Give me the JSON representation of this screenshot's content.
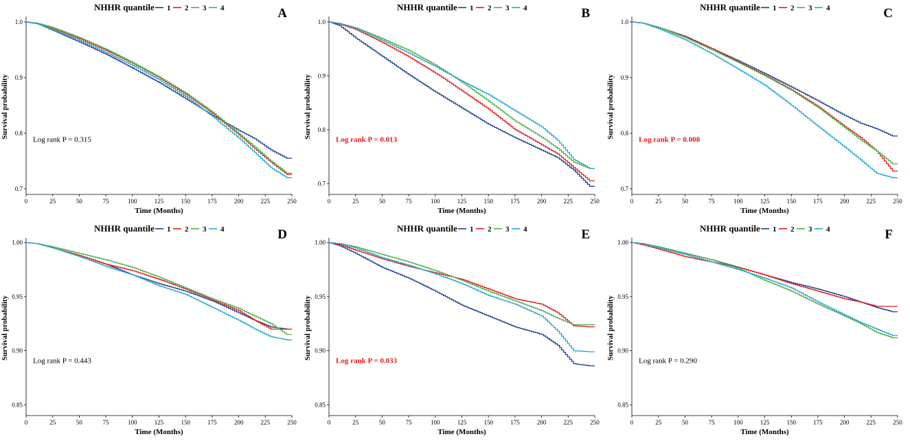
{
  "figure": {
    "legend_title": "NHHR quantile",
    "legend_labels": [
      "1",
      "2",
      "3",
      "4"
    ],
    "series_colors": [
      "#1f3f8f",
      "#e41a1c",
      "#4daf4a",
      "#2aa7c6"
    ],
    "sig_color": "#e41a1c",
    "text_color": "#000000"
  },
  "chart_data": [
    {
      "panel_label": "A",
      "type": "line",
      "step": true,
      "title": "",
      "xlabel": "Time (Months)",
      "ylabel": "Survival probability",
      "xlim": [
        0,
        250
      ],
      "ylim": [
        0.69,
        1.005
      ],
      "xticks": [
        0,
        25,
        50,
        75,
        100,
        125,
        150,
        175,
        200,
        225,
        250
      ],
      "yticks": [
        0.7,
        0.8,
        0.9,
        1.0
      ],
      "ytick_labels": [
        "0.7",
        "0.8",
        "0.9",
        "1.0"
      ],
      "annotation": "Log rank P = 0.315",
      "significant": false,
      "series": [
        {
          "name": "1",
          "x": [
            0,
            10,
            25,
            50,
            75,
            100,
            125,
            150,
            175,
            200,
            215,
            230,
            245,
            250
          ],
          "y": [
            1.0,
            0.997,
            0.985,
            0.964,
            0.942,
            0.917,
            0.891,
            0.862,
            0.832,
            0.805,
            0.79,
            0.77,
            0.755,
            0.755
          ]
        },
        {
          "name": "2",
          "x": [
            0,
            10,
            25,
            50,
            75,
            100,
            125,
            150,
            175,
            200,
            215,
            230,
            245,
            250
          ],
          "y": [
            1.0,
            0.997,
            0.988,
            0.97,
            0.949,
            0.926,
            0.9,
            0.87,
            0.836,
            0.797,
            0.772,
            0.748,
            0.726,
            0.726
          ]
        },
        {
          "name": "3",
          "x": [
            0,
            10,
            25,
            50,
            75,
            100,
            125,
            150,
            175,
            200,
            215,
            230,
            245,
            250
          ],
          "y": [
            1.0,
            0.998,
            0.99,
            0.972,
            0.951,
            0.927,
            0.901,
            0.872,
            0.838,
            0.799,
            0.775,
            0.75,
            0.728,
            0.728
          ]
        },
        {
          "name": "4",
          "x": [
            0,
            10,
            25,
            50,
            75,
            100,
            125,
            150,
            175,
            200,
            215,
            230,
            245,
            250
          ],
          "y": [
            1.0,
            0.997,
            0.986,
            0.967,
            0.945,
            0.922,
            0.896,
            0.866,
            0.83,
            0.791,
            0.765,
            0.738,
            0.72,
            0.72
          ]
        }
      ]
    },
    {
      "panel_label": "B",
      "type": "line",
      "step": true,
      "title": "",
      "xlabel": "Time (Months)",
      "ylabel": "Survival probability",
      "xlim": [
        0,
        250
      ],
      "ylim": [
        0.68,
        1.005
      ],
      "xticks": [
        0,
        25,
        50,
        75,
        100,
        125,
        150,
        175,
        200,
        225,
        250
      ],
      "yticks": [
        0.7,
        0.8,
        0.9,
        1.0
      ],
      "ytick_labels": [
        "0.7",
        "0.8",
        "0.9",
        "1.0"
      ],
      "annotation": "Log rank P = 0.013",
      "significant": true,
      "series": [
        {
          "name": "1",
          "x": [
            0,
            10,
            25,
            50,
            75,
            100,
            125,
            150,
            175,
            200,
            215,
            230,
            245,
            250
          ],
          "y": [
            1.0,
            0.993,
            0.97,
            0.936,
            0.902,
            0.87,
            0.84,
            0.81,
            0.785,
            0.762,
            0.748,
            0.725,
            0.695,
            0.695
          ]
        },
        {
          "name": "2",
          "x": [
            0,
            10,
            25,
            50,
            75,
            100,
            125,
            150,
            175,
            200,
            215,
            230,
            245,
            250
          ],
          "y": [
            1.0,
            0.996,
            0.986,
            0.962,
            0.935,
            0.905,
            0.872,
            0.838,
            0.8,
            0.772,
            0.755,
            0.73,
            0.705,
            0.705
          ]
        },
        {
          "name": "3",
          "x": [
            0,
            10,
            25,
            50,
            75,
            100,
            125,
            150,
            175,
            200,
            215,
            230,
            245,
            250
          ],
          "y": [
            1.0,
            0.997,
            0.989,
            0.969,
            0.947,
            0.92,
            0.888,
            0.853,
            0.816,
            0.786,
            0.765,
            0.74,
            0.728,
            0.728
          ]
        },
        {
          "name": "4",
          "x": [
            0,
            10,
            25,
            50,
            75,
            100,
            125,
            150,
            175,
            200,
            215,
            230,
            245,
            250
          ],
          "y": [
            1.0,
            0.997,
            0.988,
            0.966,
            0.942,
            0.917,
            0.89,
            0.865,
            0.835,
            0.805,
            0.78,
            0.745,
            0.728,
            0.728
          ]
        }
      ]
    },
    {
      "panel_label": "C",
      "type": "line",
      "step": true,
      "title": "",
      "xlabel": "Time (Months)",
      "ylabel": "Survival probability",
      "xlim": [
        0,
        250
      ],
      "ylim": [
        0.69,
        1.005
      ],
      "xticks": [
        0,
        25,
        50,
        75,
        100,
        125,
        150,
        175,
        200,
        225,
        250
      ],
      "yticks": [
        0.7,
        0.8,
        0.9,
        1.0
      ],
      "ytick_labels": [
        "0.7",
        "0.8",
        "0.9",
        "1.0"
      ],
      "annotation": "Log rank P = 0.008",
      "significant": true,
      "series": [
        {
          "name": "1",
          "x": [
            0,
            10,
            25,
            50,
            75,
            100,
            125,
            150,
            175,
            200,
            215,
            230,
            245,
            250
          ],
          "y": [
            1.0,
            0.998,
            0.99,
            0.974,
            0.952,
            0.93,
            0.907,
            0.883,
            0.858,
            0.832,
            0.818,
            0.808,
            0.795,
            0.795
          ]
        },
        {
          "name": "2",
          "x": [
            0,
            10,
            25,
            50,
            75,
            100,
            125,
            150,
            175,
            200,
            215,
            230,
            245,
            250
          ],
          "y": [
            1.0,
            0.998,
            0.99,
            0.973,
            0.952,
            0.928,
            0.904,
            0.878,
            0.848,
            0.812,
            0.792,
            0.768,
            0.732,
            0.732
          ]
        },
        {
          "name": "3",
          "x": [
            0,
            10,
            25,
            50,
            75,
            100,
            125,
            150,
            175,
            200,
            215,
            230,
            245,
            250
          ],
          "y": [
            1.0,
            0.998,
            0.99,
            0.972,
            0.95,
            0.927,
            0.903,
            0.877,
            0.846,
            0.81,
            0.788,
            0.768,
            0.745,
            0.745
          ]
        },
        {
          "name": "4",
          "x": [
            0,
            10,
            25,
            50,
            75,
            100,
            125,
            150,
            175,
            200,
            215,
            230,
            245,
            250
          ],
          "y": [
            1.0,
            0.998,
            0.988,
            0.968,
            0.943,
            0.915,
            0.886,
            0.85,
            0.812,
            0.775,
            0.752,
            0.728,
            0.72,
            0.72
          ]
        }
      ]
    },
    {
      "panel_label": "D",
      "type": "line",
      "step": true,
      "title": "",
      "xlabel": "Time (Months)",
      "ylabel": "Survival probability",
      "xlim": [
        0,
        250
      ],
      "ylim": [
        0.84,
        1.002
      ],
      "xticks": [
        0,
        25,
        50,
        75,
        100,
        125,
        150,
        175,
        200,
        225,
        250
      ],
      "yticks": [
        0.85,
        0.9,
        0.95,
        1.0
      ],
      "ytick_labels": [
        "0.85",
        "0.90",
        "0.95",
        "1.00"
      ],
      "annotation": "Log rank P = 0.443",
      "significant": false,
      "series": [
        {
          "name": "1",
          "x": [
            0,
            10,
            25,
            50,
            75,
            100,
            125,
            150,
            175,
            200,
            215,
            230,
            245,
            250
          ],
          "y": [
            1.0,
            0.999,
            0.995,
            0.988,
            0.98,
            0.97,
            0.962,
            0.955,
            0.946,
            0.935,
            0.928,
            0.922,
            0.92,
            0.92
          ]
        },
        {
          "name": "2",
          "x": [
            0,
            10,
            25,
            50,
            75,
            100,
            125,
            150,
            175,
            200,
            215,
            230,
            245,
            250
          ],
          "y": [
            1.0,
            0.999,
            0.995,
            0.988,
            0.98,
            0.974,
            0.966,
            0.957,
            0.947,
            0.937,
            0.928,
            0.92,
            0.92,
            0.92
          ]
        },
        {
          "name": "3",
          "x": [
            0,
            10,
            25,
            50,
            75,
            100,
            125,
            150,
            175,
            200,
            215,
            230,
            245,
            250
          ],
          "y": [
            1.0,
            0.999,
            0.996,
            0.99,
            0.984,
            0.977,
            0.968,
            0.958,
            0.948,
            0.939,
            0.932,
            0.925,
            0.915,
            0.915
          ]
        },
        {
          "name": "4",
          "x": [
            0,
            10,
            25,
            50,
            75,
            100,
            125,
            150,
            175,
            200,
            215,
            230,
            245,
            250
          ],
          "y": [
            1.0,
            0.999,
            0.995,
            0.987,
            0.978,
            0.97,
            0.96,
            0.952,
            0.94,
            0.928,
            0.92,
            0.913,
            0.91,
            0.91
          ]
        }
      ]
    },
    {
      "panel_label": "E",
      "type": "line",
      "step": true,
      "title": "",
      "xlabel": "Time (Months)",
      "ylabel": "Survival probability",
      "xlim": [
        0,
        250
      ],
      "ylim": [
        0.84,
        1.002
      ],
      "xticks": [
        0,
        25,
        50,
        75,
        100,
        125,
        150,
        175,
        200,
        225,
        250
      ],
      "yticks": [
        0.85,
        0.9,
        0.95,
        1.0
      ],
      "ytick_labels": [
        "0.85",
        "0.90",
        "0.95",
        "1.00"
      ],
      "annotation": "Log rank P = 0.033",
      "significant": true,
      "series": [
        {
          "name": "1",
          "x": [
            0,
            10,
            25,
            50,
            75,
            100,
            125,
            150,
            175,
            200,
            215,
            230,
            245,
            250
          ],
          "y": [
            1.0,
            0.997,
            0.99,
            0.977,
            0.967,
            0.955,
            0.942,
            0.932,
            0.922,
            0.915,
            0.905,
            0.888,
            0.886,
            0.886
          ]
        },
        {
          "name": "2",
          "x": [
            0,
            10,
            25,
            50,
            75,
            100,
            125,
            150,
            175,
            200,
            215,
            230,
            245,
            250
          ],
          "y": [
            1.0,
            0.998,
            0.993,
            0.985,
            0.978,
            0.972,
            0.966,
            0.957,
            0.948,
            0.943,
            0.935,
            0.923,
            0.922,
            0.922
          ]
        },
        {
          "name": "3",
          "x": [
            0,
            10,
            25,
            50,
            75,
            100,
            125,
            150,
            175,
            200,
            215,
            230,
            245,
            250
          ],
          "y": [
            1.0,
            0.999,
            0.996,
            0.989,
            0.982,
            0.974,
            0.965,
            0.955,
            0.946,
            0.937,
            0.93,
            0.924,
            0.924,
            0.924
          ]
        },
        {
          "name": "4",
          "x": [
            0,
            10,
            25,
            50,
            75,
            100,
            125,
            150,
            175,
            200,
            215,
            230,
            245,
            250
          ],
          "y": [
            1.0,
            0.999,
            0.995,
            0.986,
            0.979,
            0.971,
            0.962,
            0.951,
            0.943,
            0.932,
            0.918,
            0.9,
            0.899,
            0.899
          ]
        }
      ]
    },
    {
      "panel_label": "F",
      "type": "line",
      "step": true,
      "title": "",
      "xlabel": "Time (Months)",
      "ylabel": "Survival probability",
      "xlim": [
        0,
        250
      ],
      "ylim": [
        0.84,
        1.002
      ],
      "xticks": [
        0,
        25,
        50,
        75,
        100,
        125,
        150,
        175,
        200,
        225,
        250
      ],
      "yticks": [
        0.85,
        0.9,
        0.95,
        1.0
      ],
      "ytick_labels": [
        "0.85",
        "0.90",
        "0.95",
        "1.00"
      ],
      "annotation": "Log rank P = 0.290",
      "significant": false,
      "series": [
        {
          "name": "1",
          "x": [
            0,
            10,
            25,
            50,
            75,
            100,
            125,
            150,
            175,
            200,
            215,
            230,
            245,
            250
          ],
          "y": [
            1.0,
            0.999,
            0.996,
            0.99,
            0.984,
            0.977,
            0.97,
            0.963,
            0.957,
            0.95,
            0.945,
            0.94,
            0.936,
            0.936
          ]
        },
        {
          "name": "2",
          "x": [
            0,
            10,
            25,
            50,
            75,
            100,
            125,
            150,
            175,
            200,
            215,
            230,
            245,
            250
          ],
          "y": [
            1.0,
            0.998,
            0.994,
            0.987,
            0.982,
            0.977,
            0.97,
            0.962,
            0.955,
            0.948,
            0.945,
            0.941,
            0.941,
            0.941
          ]
        },
        {
          "name": "3",
          "x": [
            0,
            10,
            25,
            50,
            75,
            100,
            125,
            150,
            175,
            200,
            215,
            230,
            245,
            250
          ],
          "y": [
            1.0,
            0.999,
            0.996,
            0.99,
            0.984,
            0.976,
            0.965,
            0.955,
            0.943,
            0.932,
            0.925,
            0.917,
            0.912,
            0.912
          ]
        },
        {
          "name": "4",
          "x": [
            0,
            10,
            25,
            50,
            75,
            100,
            125,
            150,
            175,
            200,
            215,
            230,
            245,
            250
          ],
          "y": [
            1.0,
            0.999,
            0.995,
            0.989,
            0.982,
            0.975,
            0.967,
            0.958,
            0.945,
            0.933,
            0.926,
            0.92,
            0.914,
            0.914
          ]
        }
      ]
    }
  ]
}
